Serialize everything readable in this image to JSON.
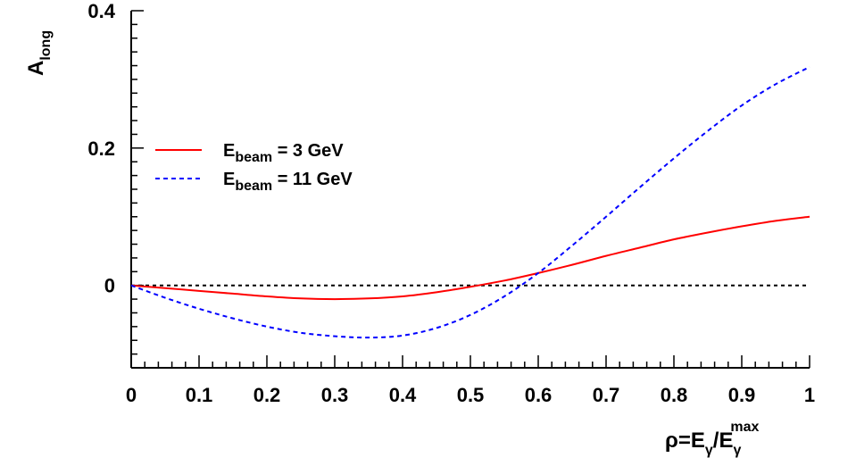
{
  "chart_data": {
    "type": "line",
    "xlabel": {
      "base": "ρ=E",
      "sub1": "γ",
      "mid": "/E",
      "sub2": "γ",
      "sup2": "max"
    },
    "ylabel": {
      "base": "A",
      "sub": "long"
    },
    "xlim": [
      0,
      1
    ],
    "ylim": [
      -0.12,
      0.4
    ],
    "x_ticks": [
      0,
      0.1,
      0.2,
      0.3,
      0.4,
      0.5,
      0.6,
      0.7,
      0.8,
      0.9,
      1
    ],
    "x_tick_labels": [
      "0",
      "0.1",
      "0.2",
      "0.3",
      "0.4",
      "0.5",
      "0.6",
      "0.7",
      "0.8",
      "0.9",
      "1"
    ],
    "y_ticks": [
      0,
      0.2,
      0.4
    ],
    "y_tick_labels": [
      "0",
      "0.2",
      "0.4"
    ],
    "reference_line": {
      "y": 0,
      "style": "dotted",
      "color": "#000000"
    },
    "grid": false,
    "legend": {
      "position": "upper-left"
    },
    "series": [
      {
        "label": {
          "base": "E",
          "sub": "beam",
          "rest": " = 3 GeV"
        },
        "color": "#ff0000",
        "style": "solid",
        "x": [
          0,
          0.05,
          0.1,
          0.15,
          0.2,
          0.25,
          0.3,
          0.35,
          0.4,
          0.45,
          0.5,
          0.55,
          0.6,
          0.65,
          0.7,
          0.75,
          0.8,
          0.85,
          0.9,
          0.95,
          1.0
        ],
        "y": [
          0,
          -0.004,
          -0.008,
          -0.012,
          -0.016,
          -0.019,
          -0.02,
          -0.019,
          -0.016,
          -0.01,
          -0.002,
          0.007,
          0.018,
          0.03,
          0.043,
          0.055,
          0.067,
          0.077,
          0.086,
          0.094,
          0.1
        ]
      },
      {
        "label": {
          "base": "E",
          "sub": "beam",
          "rest": " = 11 GeV"
        },
        "color": "#0000ff",
        "style": "dashed",
        "x": [
          0,
          0.05,
          0.1,
          0.15,
          0.2,
          0.25,
          0.3,
          0.35,
          0.4,
          0.45,
          0.5,
          0.55,
          0.6,
          0.65,
          0.7,
          0.75,
          0.8,
          0.85,
          0.9,
          0.95,
          1.0
        ],
        "y": [
          0,
          -0.018,
          -0.034,
          -0.048,
          -0.06,
          -0.069,
          -0.074,
          -0.076,
          -0.073,
          -0.062,
          -0.043,
          -0.016,
          0.018,
          0.058,
          0.1,
          0.143,
          0.185,
          0.225,
          0.262,
          0.293,
          0.318
        ]
      }
    ]
  }
}
